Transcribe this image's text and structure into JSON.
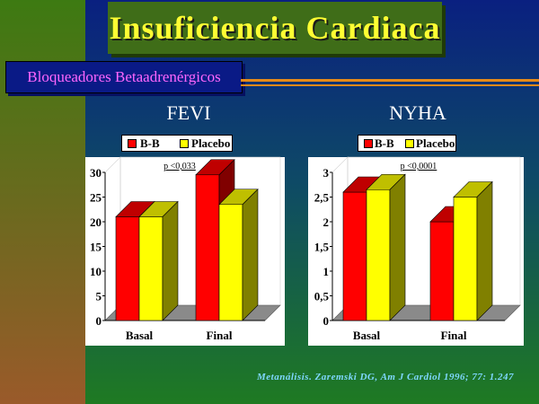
{
  "slide": {
    "title": "Insuficiencia  Cardiaca",
    "subtitle": "Bloqueadores  Betaadrenérgicos",
    "footer": "Metanálisis. Zaremski DG, Am J Cardiol 1996; 77: 1.247"
  },
  "colors": {
    "bb": "#ff0000",
    "placebo": "#ffff00",
    "title_text": "#ffff33",
    "subtitle_text": "#ff66ff"
  },
  "chart_data": [
    {
      "type": "bar",
      "title": "FEVI",
      "categories": [
        "Basal",
        "Final"
      ],
      "series": [
        {
          "name": "B-B",
          "values": [
            21,
            29.5
          ]
        },
        {
          "name": "Placebo",
          "values": [
            21,
            23.5
          ]
        }
      ],
      "ylim": [
        0,
        30
      ],
      "yticks": [
        "0",
        "5",
        "10",
        "15",
        "20",
        "25",
        "30"
      ],
      "annotation": "p <0,033",
      "legend_position": "top",
      "grid": false
    },
    {
      "type": "bar",
      "title": "NYHA",
      "categories": [
        "Basal",
        "Final"
      ],
      "series": [
        {
          "name": "B-B",
          "values": [
            2.6,
            2.0
          ]
        },
        {
          "name": "Placebo",
          "values": [
            2.65,
            2.5
          ]
        }
      ],
      "ylim": [
        0,
        3
      ],
      "yticks": [
        "0",
        "0,5",
        "1",
        "1,5",
        "2",
        "2,5",
        "3"
      ],
      "annotation": "p <0,0001",
      "legend_position": "top",
      "grid": false
    }
  ]
}
